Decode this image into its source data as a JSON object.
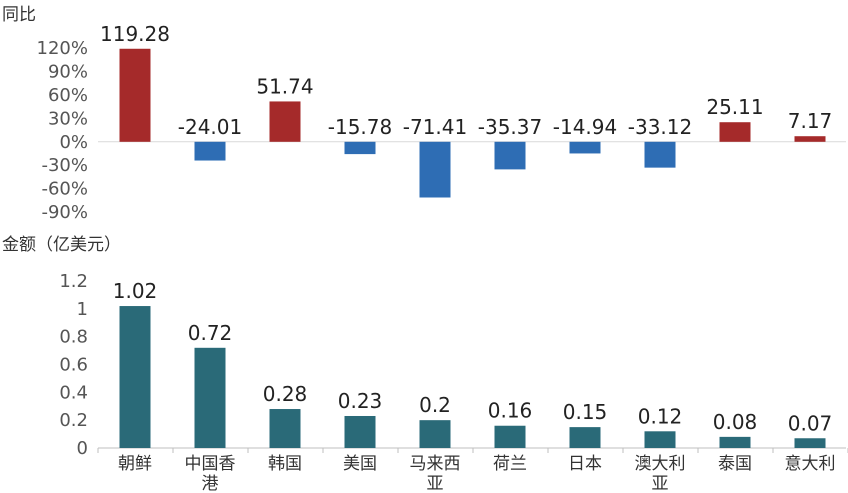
{
  "chart_data": [
    {
      "type": "bar",
      "ylabel": "同比",
      "categories": [
        "朝鲜",
        "中国香港",
        "韩国",
        "美国",
        "马来西亚",
        "荷兰",
        "日本",
        "澳大利亚",
        "泰国",
        "意大利"
      ],
      "values": [
        119.28,
        -24.01,
        51.74,
        -15.78,
        -71.41,
        -35.37,
        -14.94,
        -33.12,
        25.11,
        7.17
      ],
      "data_labels": [
        "119.28",
        "-24.01",
        "51.74",
        "-15.78",
        "-71.41",
        "-35.37",
        "-14.94",
        "-33.12",
        "25.11",
        "7.17"
      ],
      "y_ticks": [
        "120%",
        "90%",
        "60%",
        "30%",
        "0%",
        "-30%",
        "-60%",
        "-90%"
      ],
      "y_tick_values": [
        120,
        90,
        60,
        30,
        0,
        -30,
        -60,
        -90
      ],
      "ylim": [
        -90,
        120
      ],
      "colors": {
        "positive": "#a52a2a",
        "negative": "#2e6db4"
      }
    },
    {
      "type": "bar",
      "ylabel": "金额（亿美元）",
      "categories": [
        "朝鲜",
        "中国香港",
        "韩国",
        "美国",
        "马来西亚",
        "荷兰",
        "日本",
        "澳大利亚",
        "泰国",
        "意大利"
      ],
      "category_lines": [
        [
          "朝鲜"
        ],
        [
          "中国香",
          "港"
        ],
        [
          "韩国"
        ],
        [
          "美国"
        ],
        [
          "马来西",
          "亚"
        ],
        [
          "荷兰"
        ],
        [
          "日本"
        ],
        [
          "澳大利",
          "亚"
        ],
        [
          "泰国"
        ],
        [
          "意大利"
        ]
      ],
      "values": [
        1.02,
        0.72,
        0.28,
        0.23,
        0.2,
        0.16,
        0.15,
        0.12,
        0.08,
        0.07
      ],
      "data_labels": [
        "1.02",
        "0.72",
        "0.28",
        "0.23",
        "0.2",
        "0.16",
        "0.15",
        "0.12",
        "0.08",
        "0.07"
      ],
      "y_ticks": [
        "1.2",
        "1",
        "0.8",
        "0.6",
        "0.4",
        "0.2",
        "0"
      ],
      "y_tick_values": [
        1.2,
        1,
        0.8,
        0.6,
        0.4,
        0.2,
        0
      ],
      "ylim": [
        0,
        1.2
      ],
      "colors": {
        "bar": "#2a6a78"
      }
    }
  ]
}
